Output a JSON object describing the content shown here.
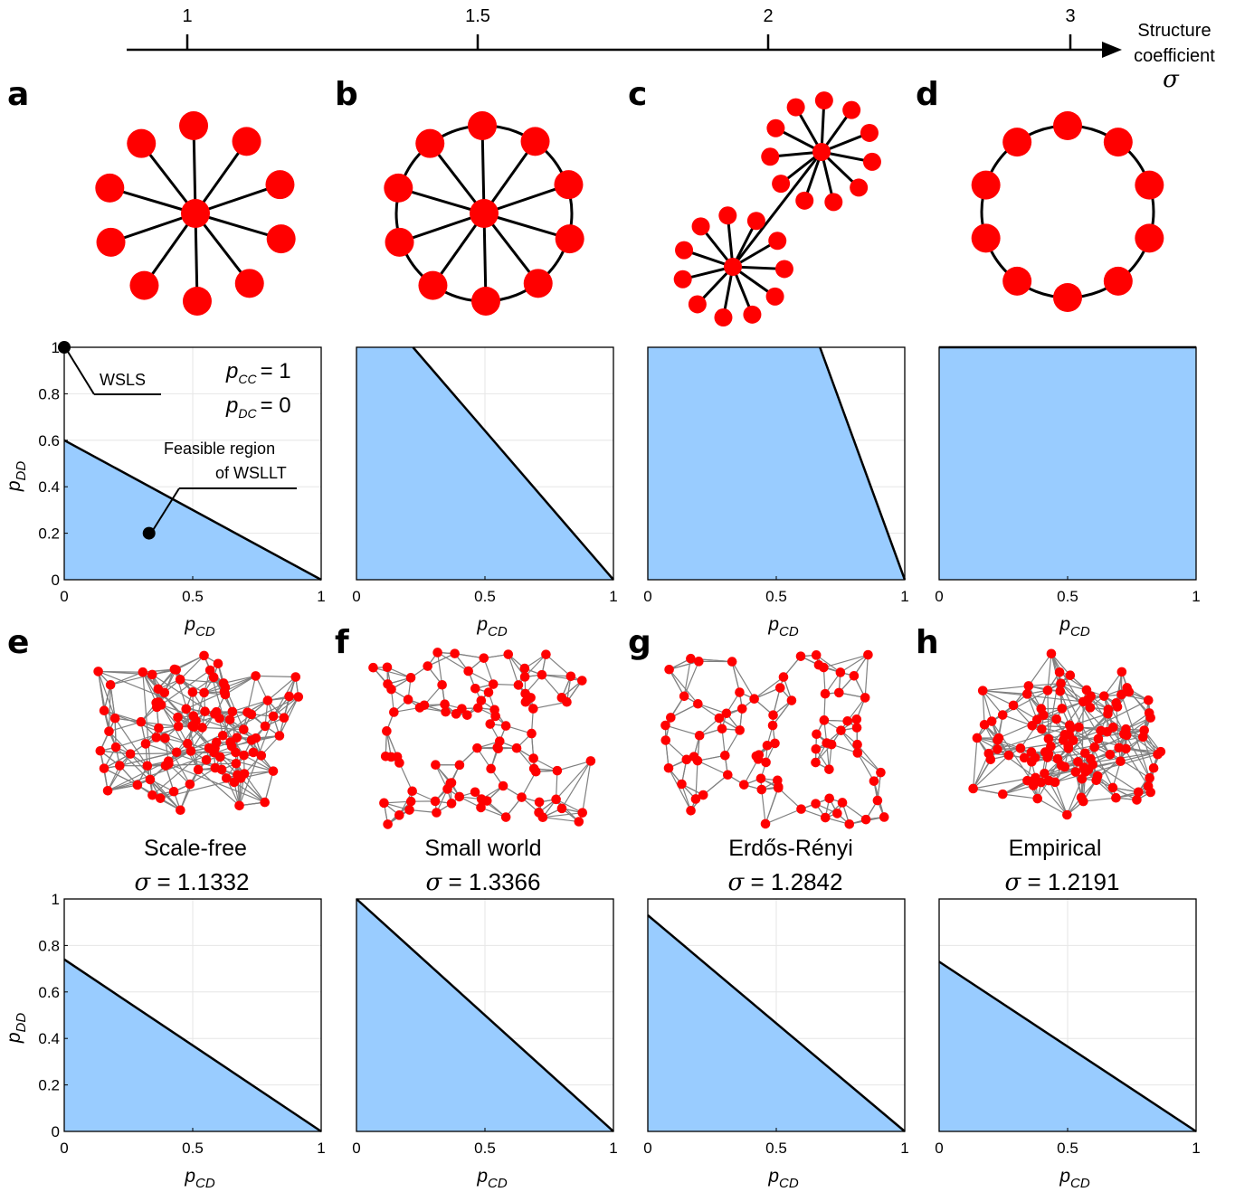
{
  "figure": {
    "structure_axis": {
      "ticks": [
        "1",
        "1.5",
        "2",
        "3"
      ],
      "tick_values": [
        1,
        1.5,
        2,
        3
      ],
      "label_line1": "Structure",
      "label_line2": "coefficient",
      "symbol": "σ"
    },
    "panel_letters": [
      "a",
      "b",
      "c",
      "d",
      "e",
      "f",
      "g",
      "h"
    ],
    "network_names": {
      "e": "Scale-free",
      "f": "Small world",
      "g": "Erdős-Rényi",
      "h": "Empirical"
    },
    "sigma_values": {
      "e": "1.1332",
      "f": "1.3366",
      "g": "1.2842",
      "h": "1.2191"
    },
    "annotations": {
      "wsls": "WSLS",
      "feasible_line1": "Feasible region",
      "feasible_line2": "of WSLLT",
      "pcc_main": "p",
      "pcc_sub": "CC",
      "pcc_rhs": "= 1",
      "pdc_main": "p",
      "pdc_sub": "DC",
      "pdc_rhs": "= 0"
    },
    "axes_text": {
      "x_main": "p",
      "x_sub": "CD",
      "y_main": "p",
      "y_sub": "DD"
    },
    "colors": {
      "fill": "#99CCFF",
      "boundary": "#000000",
      "node": "#FF0000",
      "edge": "#808080",
      "grid": "#e6e6e6"
    }
  },
  "chart_data": [
    {
      "panel": "a",
      "type": "area",
      "x": [
        0,
        1
      ],
      "y": [
        0.6,
        0
      ],
      "xlim": [
        0,
        1
      ],
      "ylim": [
        0,
        1
      ],
      "xticks": [
        "0",
        "0.5",
        "1"
      ],
      "yticks": [
        "0",
        "0.2",
        "0.4",
        "0.6",
        "0.8",
        "1"
      ],
      "points": [
        {
          "name": "WSLS",
          "x": 0,
          "y": 1
        },
        {
          "name": "WSLLT",
          "x": 0.33,
          "y": 0.2
        }
      ]
    },
    {
      "panel": "b",
      "type": "area",
      "x": [
        0,
        0.22,
        1
      ],
      "y": [
        1,
        1,
        0
      ],
      "xlim": [
        0,
        1
      ],
      "ylim": [
        0,
        1
      ],
      "xticks": [
        "0",
        "0.5",
        "1"
      ]
    },
    {
      "panel": "c",
      "type": "area",
      "x": [
        0,
        0.67,
        1
      ],
      "y": [
        1,
        1,
        0
      ],
      "xlim": [
        0,
        1
      ],
      "ylim": [
        0,
        1
      ],
      "xticks": [
        "0",
        "0.5",
        "1"
      ]
    },
    {
      "panel": "d",
      "type": "area",
      "x": [
        0,
        1
      ],
      "y": [
        1,
        1
      ],
      "xlim": [
        0,
        1
      ],
      "ylim": [
        0,
        1
      ],
      "xticks": [
        "0",
        "0.5",
        "1"
      ]
    },
    {
      "panel": "e",
      "type": "area",
      "x": [
        0,
        1
      ],
      "y": [
        0.74,
        0
      ],
      "xlim": [
        0,
        1
      ],
      "ylim": [
        0,
        1
      ],
      "xticks": [
        "0",
        "0.5",
        "1"
      ],
      "yticks": [
        "0",
        "0.2",
        "0.4",
        "0.6",
        "0.8",
        "1"
      ]
    },
    {
      "panel": "f",
      "type": "area",
      "x": [
        0,
        1
      ],
      "y": [
        1,
        0
      ],
      "xlim": [
        0,
        1
      ],
      "ylim": [
        0,
        1
      ],
      "xticks": [
        "0",
        "0.5",
        "1"
      ]
    },
    {
      "panel": "g",
      "type": "area",
      "x": [
        0,
        1
      ],
      "y": [
        0.93,
        0
      ],
      "xlim": [
        0,
        1
      ],
      "ylim": [
        0,
        1
      ],
      "xticks": [
        "0",
        "0.5",
        "1"
      ]
    },
    {
      "panel": "h",
      "type": "area",
      "x": [
        0,
        1
      ],
      "y": [
        0.73,
        0
      ],
      "xlim": [
        0,
        1
      ],
      "ylim": [
        0,
        1
      ],
      "xticks": [
        "0",
        "0.5",
        "1"
      ]
    }
  ]
}
